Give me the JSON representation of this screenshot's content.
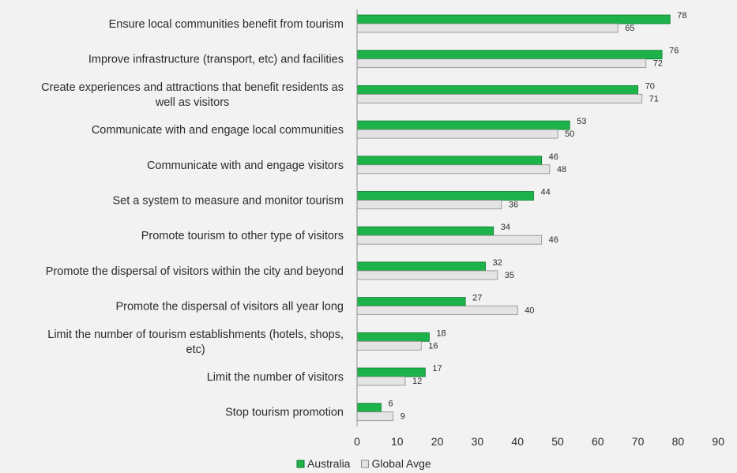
{
  "chart_data": {
    "type": "bar",
    "orientation": "horizontal",
    "categories": [
      [
        "Ensure local communities benefit from tourism"
      ],
      [
        "Improve infrastructure (transport, etc) and facilities"
      ],
      [
        "Create experiences and attractions that benefit residents as",
        "well as visitors"
      ],
      [
        "Communicate with and engage local communities"
      ],
      [
        "Communicate with and engage visitors"
      ],
      [
        "Set a system to measure and monitor tourism"
      ],
      [
        "Promote tourism to other type of visitors"
      ],
      [
        "Promote the dispersal of visitors within the city and beyond"
      ],
      [
        "Promote the dispersal of visitors all year long"
      ],
      [
        "Limit the number of tourism establishments (hotels, shops,",
        "etc)"
      ],
      [
        "Limit the number of visitors"
      ],
      [
        "Stop tourism promotion"
      ]
    ],
    "series": [
      {
        "name": "Australia",
        "color": "#1db34a",
        "values": [
          78,
          76,
          70,
          53,
          46,
          44,
          34,
          32,
          27,
          18,
          17,
          6
        ]
      },
      {
        "name": "Global Avge",
        "color": "#e4e4e4",
        "values": [
          65,
          72,
          71,
          50,
          48,
          36,
          46,
          35,
          40,
          16,
          12,
          9
        ]
      }
    ],
    "xlim": [
      0,
      90
    ],
    "xticks": [
      0,
      10,
      20,
      30,
      40,
      50,
      60,
      70,
      80,
      90
    ],
    "grid": false,
    "legend_position": "bottom-center",
    "title": "",
    "xlabel": "",
    "ylabel": ""
  }
}
